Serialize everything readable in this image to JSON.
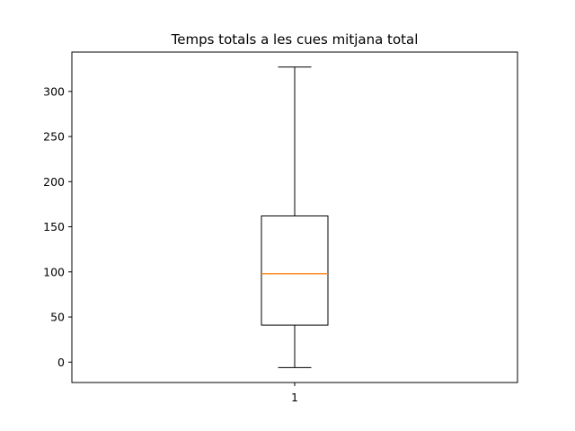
{
  "chart_data": {
    "type": "boxplot",
    "title": "Temps totals a les cues mitjana total",
    "categories": [
      "1"
    ],
    "boxes": [
      {
        "category": "1",
        "whisker_low": -6,
        "q1": 41,
        "median": 98,
        "q3": 162,
        "whisker_high": 327
      }
    ],
    "ylim": [
      -22.6,
      343.6
    ],
    "yticks": [
      0,
      50,
      100,
      150,
      200,
      250,
      300
    ],
    "ytick_labels": [
      "0",
      "50",
      "100",
      "150",
      "200",
      "250",
      "300"
    ],
    "grid": false,
    "median_color": "#ff7f0e",
    "box_color": "#000000"
  }
}
